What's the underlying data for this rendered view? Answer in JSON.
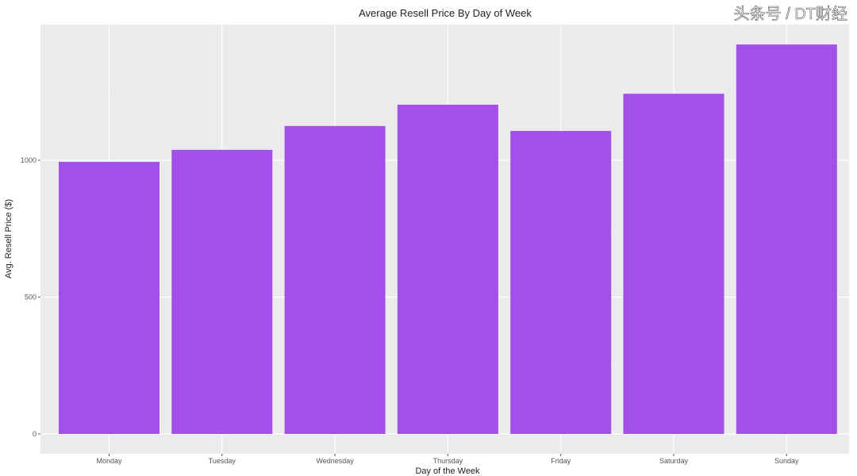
{
  "chart_data": {
    "type": "bar",
    "title": "Average Resell Price By Day of Week",
    "xlabel": "Day of the Week",
    "ylabel": "Avg. Resell Price ($)",
    "categories": [
      "Monday",
      "Tuesday",
      "Wednesday",
      "Thursday",
      "Friday",
      "Saturday",
      "Sunday"
    ],
    "values": [
      994,
      1038,
      1125,
      1203,
      1107,
      1243,
      1423
    ],
    "ylim": [
      0,
      1500
    ],
    "yticks": [
      0,
      500,
      1000
    ],
    "ytick_labels": [
      "0",
      "500",
      "1000"
    ],
    "grid": true,
    "bar_color": "#a34fea",
    "panel_color": "#ebebeb"
  },
  "watermark": "头条号 / DT财经"
}
